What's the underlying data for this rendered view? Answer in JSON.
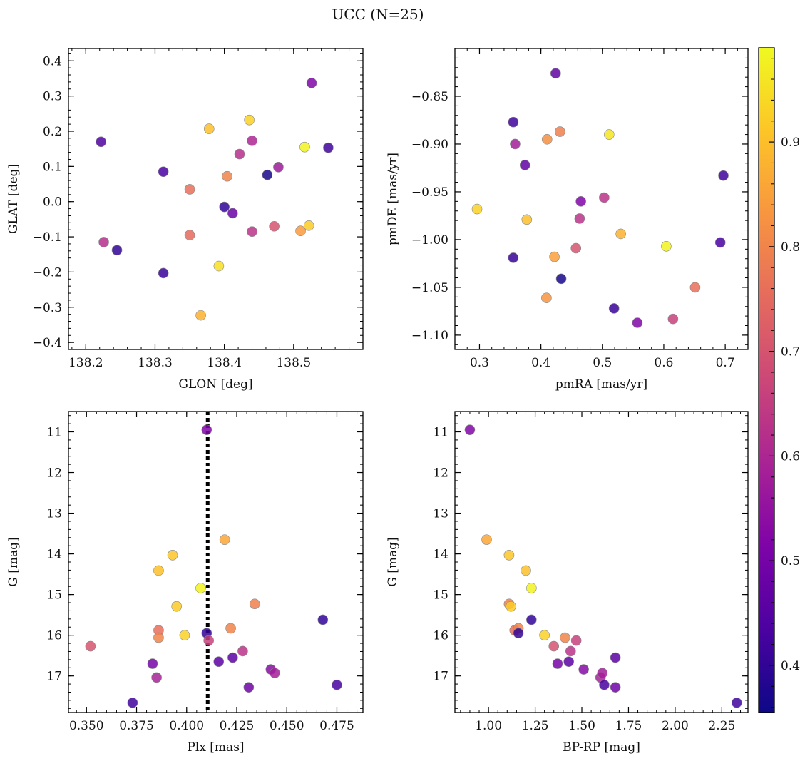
{
  "figure": {
    "title": "UCC (N=25)"
  },
  "colorbar": {
    "min": 0.355,
    "max": 0.99,
    "ticks": [
      0.4,
      0.5,
      0.6,
      0.7,
      0.8,
      0.9
    ],
    "tick_labels": [
      "0.4",
      "0.5",
      "0.6",
      "0.7",
      "0.8",
      "0.9"
    ],
    "colormap": "plasma"
  },
  "chart_data": [
    {
      "type": "scatter",
      "title": "",
      "xlabel": "GLON [deg]",
      "ylabel": "GLAT [deg]",
      "xlim": [
        138.175,
        138.6
      ],
      "ylim": [
        -0.42,
        0.435
      ],
      "xticks": [
        138.2,
        138.3,
        138.4,
        138.5
      ],
      "xtick_labels": [
        "138.2",
        "138.3",
        "138.4",
        "138.5"
      ],
      "yticks": [
        -0.4,
        -0.3,
        -0.2,
        -0.1,
        0.0,
        0.1,
        0.2,
        0.3,
        0.4
      ],
      "ytick_labels": [
        "−0.4",
        "−0.3",
        "−0.2",
        "−0.1",
        "0.0",
        "0.1",
        "0.2",
        "0.3",
        "0.4"
      ],
      "y_inverted": false,
      "points": [
        {
          "x": 138.222,
          "y": 0.17,
          "c": 0.44
        },
        {
          "x": 138.226,
          "y": -0.115,
          "c": 0.62
        },
        {
          "x": 138.245,
          "y": -0.138,
          "c": 0.4
        },
        {
          "x": 138.312,
          "y": 0.085,
          "c": 0.43
        },
        {
          "x": 138.312,
          "y": -0.203,
          "c": 0.41
        },
        {
          "x": 138.35,
          "y": 0.035,
          "c": 0.76
        },
        {
          "x": 138.35,
          "y": -0.095,
          "c": 0.75
        },
        {
          "x": 138.366,
          "y": -0.323,
          "c": 0.88
        },
        {
          "x": 138.378,
          "y": 0.207,
          "c": 0.9
        },
        {
          "x": 138.392,
          "y": -0.183,
          "c": 0.95
        },
        {
          "x": 138.4,
          "y": -0.015,
          "c": 0.4
        },
        {
          "x": 138.404,
          "y": 0.072,
          "c": 0.8
        },
        {
          "x": 138.412,
          "y": -0.033,
          "c": 0.48
        },
        {
          "x": 138.422,
          "y": 0.135,
          "c": 0.62
        },
        {
          "x": 138.436,
          "y": 0.232,
          "c": 0.93
        },
        {
          "x": 138.44,
          "y": 0.173,
          "c": 0.6
        },
        {
          "x": 138.44,
          "y": -0.085,
          "c": 0.63
        },
        {
          "x": 138.462,
          "y": 0.076,
          "c": 0.37
        },
        {
          "x": 138.472,
          "y": -0.07,
          "c": 0.7
        },
        {
          "x": 138.478,
          "y": 0.098,
          "c": 0.57
        },
        {
          "x": 138.51,
          "y": -0.083,
          "c": 0.84
        },
        {
          "x": 138.516,
          "y": 0.155,
          "c": 0.98
        },
        {
          "x": 138.522,
          "y": -0.068,
          "c": 0.92
        },
        {
          "x": 138.526,
          "y": 0.337,
          "c": 0.52
        },
        {
          "x": 138.55,
          "y": 0.153,
          "c": 0.42
        }
      ]
    },
    {
      "type": "scatter",
      "title": "",
      "xlabel": "pmRA [mas/yr]",
      "ylabel": "pmDE [mas/yr]",
      "xlim": [
        0.26,
        0.737
      ],
      "ylim": [
        -1.115,
        -0.8
      ],
      "xticks": [
        0.3,
        0.4,
        0.5,
        0.6,
        0.7
      ],
      "xtick_labels": [
        "0.3",
        "0.4",
        "0.5",
        "0.6",
        "0.7"
      ],
      "yticks": [
        -1.1,
        -1.05,
        -1.0,
        -0.95,
        -0.9,
        -0.85
      ],
      "ytick_labels": [
        "−1.10",
        "−1.05",
        "−1.00",
        "−0.95",
        "−0.90",
        "−0.85"
      ],
      "y_inverted": false,
      "points": [
        {
          "x": 0.296,
          "y": -0.968,
          "c": 0.93
        },
        {
          "x": 0.355,
          "y": -0.877,
          "c": 0.42
        },
        {
          "x": 0.355,
          "y": -1.019,
          "c": 0.41
        },
        {
          "x": 0.358,
          "y": -0.9,
          "c": 0.58
        },
        {
          "x": 0.374,
          "y": -0.922,
          "c": 0.47
        },
        {
          "x": 0.377,
          "y": -0.979,
          "c": 0.9
        },
        {
          "x": 0.409,
          "y": -1.061,
          "c": 0.83
        },
        {
          "x": 0.41,
          "y": -0.895,
          "c": 0.82
        },
        {
          "x": 0.422,
          "y": -1.018,
          "c": 0.85
        },
        {
          "x": 0.424,
          "y": -0.826,
          "c": 0.47
        },
        {
          "x": 0.431,
          "y": -0.887,
          "c": 0.79
        },
        {
          "x": 0.433,
          "y": -1.041,
          "c": 0.37
        },
        {
          "x": 0.457,
          "y": -1.009,
          "c": 0.7
        },
        {
          "x": 0.463,
          "y": -0.978,
          "c": 0.63
        },
        {
          "x": 0.465,
          "y": -0.96,
          "c": 0.52
        },
        {
          "x": 0.503,
          "y": -0.956,
          "c": 0.63
        },
        {
          "x": 0.511,
          "y": -0.89,
          "c": 0.96
        },
        {
          "x": 0.519,
          "y": -1.072,
          "c": 0.41
        },
        {
          "x": 0.53,
          "y": -0.994,
          "c": 0.88
        },
        {
          "x": 0.557,
          "y": -1.087,
          "c": 0.52
        },
        {
          "x": 0.604,
          "y": -1.007,
          "c": 0.98
        },
        {
          "x": 0.615,
          "y": -1.083,
          "c": 0.66
        },
        {
          "x": 0.651,
          "y": -1.05,
          "c": 0.76
        },
        {
          "x": 0.692,
          "y": -1.003,
          "c": 0.43
        },
        {
          "x": 0.697,
          "y": -0.933,
          "c": 0.42
        }
      ]
    },
    {
      "type": "scatter",
      "title": "",
      "xlabel": "Plx [mas]",
      "ylabel": "G [mag]",
      "xlim": [
        0.341,
        0.488
      ],
      "ylim": [
        10.5,
        17.9
      ],
      "xticks": [
        0.35,
        0.375,
        0.4,
        0.425,
        0.45,
        0.475
      ],
      "xtick_labels": [
        "0.350",
        "0.375",
        "0.400",
        "0.425",
        "0.450",
        "0.475"
      ],
      "yticks": [
        11,
        12,
        13,
        14,
        15,
        16,
        17
      ],
      "ytick_labels": [
        "11",
        "12",
        "13",
        "14",
        "15",
        "16",
        "17"
      ],
      "y_inverted": true,
      "vline": 0.4105,
      "points": [
        {
          "x": 0.352,
          "y": 16.27,
          "c": 0.7
        },
        {
          "x": 0.373,
          "y": 17.66,
          "c": 0.42
        },
        {
          "x": 0.383,
          "y": 16.7,
          "c": 0.5
        },
        {
          "x": 0.385,
          "y": 17.04,
          "c": 0.59
        },
        {
          "x": 0.386,
          "y": 15.88,
          "c": 0.76
        },
        {
          "x": 0.386,
          "y": 16.06,
          "c": 0.8
        },
        {
          "x": 0.386,
          "y": 14.41,
          "c": 0.9
        },
        {
          "x": 0.393,
          "y": 14.03,
          "c": 0.91
        },
        {
          "x": 0.395,
          "y": 15.29,
          "c": 0.92
        },
        {
          "x": 0.399,
          "y": 16.0,
          "c": 0.93
        },
        {
          "x": 0.407,
          "y": 14.84,
          "c": 0.98
        },
        {
          "x": 0.41,
          "y": 10.95,
          "c": 0.52
        },
        {
          "x": 0.41,
          "y": 15.95,
          "c": 0.4
        },
        {
          "x": 0.411,
          "y": 16.13,
          "c": 0.66
        },
        {
          "x": 0.416,
          "y": 16.65,
          "c": 0.46
        },
        {
          "x": 0.419,
          "y": 13.65,
          "c": 0.86
        },
        {
          "x": 0.422,
          "y": 15.83,
          "c": 0.8
        },
        {
          "x": 0.423,
          "y": 16.55,
          "c": 0.46
        },
        {
          "x": 0.428,
          "y": 16.39,
          "c": 0.63
        },
        {
          "x": 0.431,
          "y": 17.28,
          "c": 0.49
        },
        {
          "x": 0.434,
          "y": 15.23,
          "c": 0.79
        },
        {
          "x": 0.442,
          "y": 16.84,
          "c": 0.53
        },
        {
          "x": 0.444,
          "y": 16.93,
          "c": 0.58
        },
        {
          "x": 0.468,
          "y": 15.62,
          "c": 0.4
        },
        {
          "x": 0.475,
          "y": 17.22,
          "c": 0.43
        }
      ]
    },
    {
      "type": "scatter",
      "title": "",
      "xlabel": "BP-RP [mag]",
      "ylabel": "G [mag]",
      "xlim": [
        0.82,
        2.39
      ],
      "ylim": [
        10.5,
        17.9
      ],
      "xticks": [
        1.0,
        1.25,
        1.5,
        1.75,
        2.0,
        2.25
      ],
      "xtick_labels": [
        "1.00",
        "1.25",
        "1.50",
        "1.75",
        "2.00",
        "2.25"
      ],
      "yticks": [
        11,
        12,
        13,
        14,
        15,
        16,
        17
      ],
      "ytick_labels": [
        "11",
        "12",
        "13",
        "14",
        "15",
        "16",
        "17"
      ],
      "y_inverted": true,
      "points": [
        {
          "x": 0.9,
          "y": 10.95,
          "c": 0.52
        },
        {
          "x": 0.99,
          "y": 13.65,
          "c": 0.86
        },
        {
          "x": 1.11,
          "y": 14.03,
          "c": 0.91
        },
        {
          "x": 1.11,
          "y": 15.23,
          "c": 0.79
        },
        {
          "x": 1.12,
          "y": 15.29,
          "c": 0.92
        },
        {
          "x": 1.14,
          "y": 15.88,
          "c": 0.76
        },
        {
          "x": 1.16,
          "y": 15.83,
          "c": 0.8
        },
        {
          "x": 1.16,
          "y": 15.95,
          "c": 0.4
        },
        {
          "x": 1.2,
          "y": 14.41,
          "c": 0.9
        },
        {
          "x": 1.23,
          "y": 14.84,
          "c": 0.98
        },
        {
          "x": 1.23,
          "y": 15.62,
          "c": 0.4
        },
        {
          "x": 1.3,
          "y": 16.0,
          "c": 0.93
        },
        {
          "x": 1.35,
          "y": 16.27,
          "c": 0.7
        },
        {
          "x": 1.37,
          "y": 16.7,
          "c": 0.5
        },
        {
          "x": 1.41,
          "y": 16.06,
          "c": 0.8
        },
        {
          "x": 1.43,
          "y": 16.65,
          "c": 0.46
        },
        {
          "x": 1.44,
          "y": 16.39,
          "c": 0.63
        },
        {
          "x": 1.47,
          "y": 16.13,
          "c": 0.66
        },
        {
          "x": 1.51,
          "y": 16.84,
          "c": 0.53
        },
        {
          "x": 1.6,
          "y": 17.04,
          "c": 0.59
        },
        {
          "x": 1.61,
          "y": 16.93,
          "c": 0.58
        },
        {
          "x": 1.62,
          "y": 17.22,
          "c": 0.43
        },
        {
          "x": 1.68,
          "y": 16.55,
          "c": 0.46
        },
        {
          "x": 1.68,
          "y": 17.28,
          "c": 0.49
        },
        {
          "x": 2.33,
          "y": 17.66,
          "c": 0.42
        }
      ]
    }
  ]
}
